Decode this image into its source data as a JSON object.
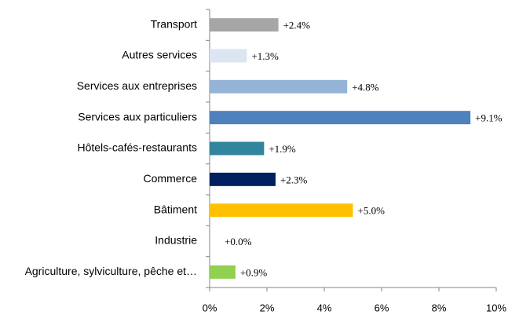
{
  "chart_data": {
    "type": "bar",
    "orientation": "horizontal",
    "categories": [
      "Transport",
      "Autres services",
      "Services aux entreprises",
      "Services aux particuliers",
      "Hôtels-cafés-restaurants",
      "Commerce",
      "Bâtiment",
      "Industrie",
      "Agriculture, sylviculture, pêche et…"
    ],
    "values": [
      2.4,
      1.3,
      4.8,
      9.1,
      1.9,
      2.3,
      5.0,
      0.0,
      0.9
    ],
    "value_labels": [
      "+2.4%",
      "+1.3%",
      "+4.8%",
      "+9.1%",
      "+1.9%",
      "+2.3%",
      "+5.0%",
      "+0.0%",
      "+0.9%"
    ],
    "colors": [
      "#a6a6a6",
      "#dce6f2",
      "#95b3d7",
      "#4f81bd",
      "#31859c",
      "#002060",
      "#ffc000",
      "#c00000",
      "#92d050"
    ],
    "xlim": [
      0,
      10
    ],
    "xticks": [
      {
        "value": 0,
        "label": "0%"
      },
      {
        "value": 2,
        "label": "2%"
      },
      {
        "value": 4,
        "label": "4%"
      },
      {
        "value": 6,
        "label": "6%"
      },
      {
        "value": 8,
        "label": "8%"
      },
      {
        "value": 10,
        "label": "10%"
      }
    ],
    "grid": false
  }
}
